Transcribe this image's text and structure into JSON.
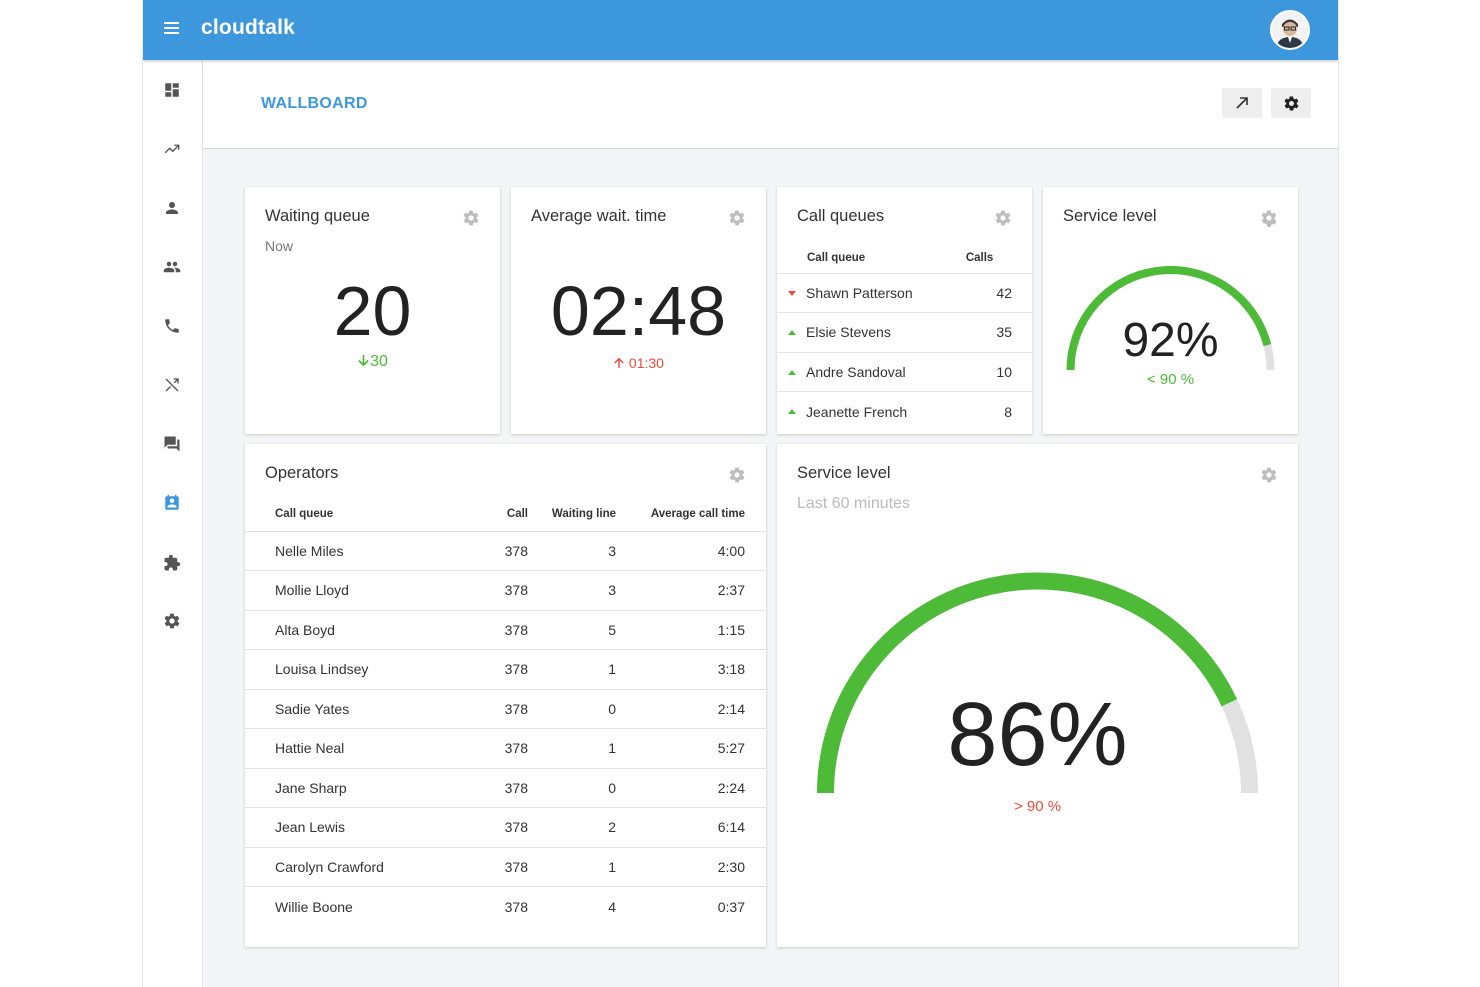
{
  "app": {
    "brand": "cloudtalk"
  },
  "header": {
    "title": "WALLBOARD"
  },
  "sidebar": {
    "items": [
      {
        "name": "dashboard",
        "icon": "dashboard-icon"
      },
      {
        "name": "analytics",
        "icon": "trending-up-icon"
      },
      {
        "name": "contacts",
        "icon": "person-icon"
      },
      {
        "name": "team",
        "icon": "people-icon"
      },
      {
        "name": "calls",
        "icon": "phone-icon"
      },
      {
        "name": "call-flow",
        "icon": "shuffle-icon"
      },
      {
        "name": "conversations",
        "icon": "chat-icon"
      },
      {
        "name": "wallboard",
        "icon": "contact-card-icon",
        "active": true
      },
      {
        "name": "integrations",
        "icon": "puzzle-icon"
      },
      {
        "name": "settings",
        "icon": "gear-icon"
      }
    ]
  },
  "waiting_queue": {
    "title": "Waiting queue",
    "subtitle": "Now",
    "value": "20",
    "delta": "30",
    "delta_color": "#4dba38"
  },
  "avg_wait": {
    "title": "Average wait. time",
    "value": "02:48",
    "delta": "01:30",
    "delta_color": "#e94b3c"
  },
  "call_queues": {
    "title": "Call queues",
    "headers": {
      "queue": "Call queue",
      "calls": "Calls"
    },
    "rows": [
      {
        "name": "Shawn Patterson",
        "calls": "42",
        "trend": "down"
      },
      {
        "name": "Elsie Stevens",
        "calls": "35",
        "trend": "up"
      },
      {
        "name": "Andre Sandoval",
        "calls": "10",
        "trend": "up"
      },
      {
        "name": "Jeanette French",
        "calls": "8",
        "trend": "up"
      }
    ]
  },
  "service_level_small": {
    "title": "Service level",
    "value": "92%",
    "fraction": 0.92,
    "target": "< 90 %",
    "target_color": "#4dba38"
  },
  "operators": {
    "title": "Operators",
    "headers": {
      "queue": "Call queue",
      "call": "Call",
      "waiting": "Waiting line",
      "avg": "Average call time"
    },
    "rows": [
      {
        "name": "Nelle Miles",
        "call": "378",
        "waiting": "3",
        "avg": "4:00"
      },
      {
        "name": "Mollie Lloyd",
        "call": "378",
        "waiting": "3",
        "avg": "2:37"
      },
      {
        "name": "Alta Boyd",
        "call": "378",
        "waiting": "5",
        "avg": "1:15"
      },
      {
        "name": "Louisa Lindsey",
        "call": "378",
        "waiting": "1",
        "avg": "3:18"
      },
      {
        "name": "Sadie Yates",
        "call": "378",
        "waiting": "0",
        "avg": "2:14"
      },
      {
        "name": "Hattie Neal",
        "call": "378",
        "waiting": "1",
        "avg": "5:27"
      },
      {
        "name": "Jane Sharp",
        "call": "378",
        "waiting": "0",
        "avg": "2:24"
      },
      {
        "name": "Jean Lewis",
        "call": "378",
        "waiting": "2",
        "avg": "6:14"
      },
      {
        "name": "Carolyn Crawford",
        "call": "378",
        "waiting": "1",
        "avg": "2:30"
      },
      {
        "name": "Willie Boone",
        "call": "378",
        "waiting": "4",
        "avg": "0:37"
      }
    ]
  },
  "service_level_large": {
    "title": "Service level",
    "subtitle": "Last 60 minutes",
    "value": "86%",
    "fraction": 0.86,
    "target": "> 90 %",
    "target_color": "#e94b3c"
  },
  "colors": {
    "accent": "#3d97dd",
    "gauge_fill": "#4dba38",
    "gauge_track": "#e1e1e1"
  }
}
